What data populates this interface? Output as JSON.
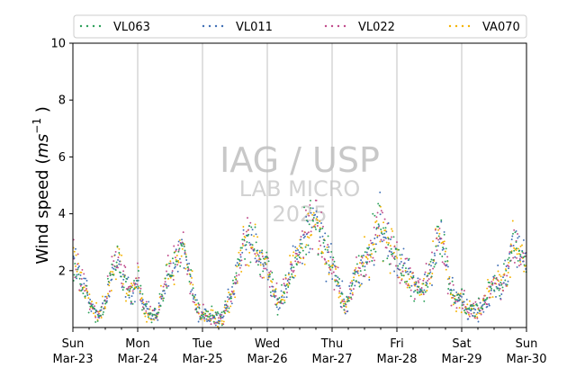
{
  "chart_data": {
    "type": "scatter",
    "title": "",
    "xlabel": "",
    "ylabel": "Wind speed",
    "ylabel_unit_base": "ms",
    "ylabel_unit_exp": "−1",
    "ylim": [
      0,
      10
    ],
    "xlim": [
      0,
      7
    ],
    "yticks": [
      2,
      4,
      6,
      8,
      10
    ],
    "grid": "vertical",
    "legend_position": "top",
    "x_ticks": [
      {
        "x": 0,
        "day": "Sun",
        "date": "Mar-23"
      },
      {
        "x": 1,
        "day": "Mon",
        "date": "Mar-24"
      },
      {
        "x": 2,
        "day": "Tue",
        "date": "Mar-25"
      },
      {
        "x": 3,
        "day": "Wed",
        "date": "Mar-26"
      },
      {
        "x": 4,
        "day": "Thu",
        "date": "Mar-27"
      },
      {
        "x": 5,
        "day": "Fri",
        "date": "Mar-28"
      },
      {
        "x": 6,
        "day": "Sat",
        "date": "Mar-29"
      },
      {
        "x": 7,
        "day": "Sun",
        "date": "Mar-30"
      }
    ],
    "watermark": [
      "IAG / USP",
      "LAB MICRO",
      "2025"
    ],
    "series": [
      {
        "name": "VL063",
        "color": "#2ca05a"
      },
      {
        "name": "VL011",
        "color": "#3f6fb5"
      },
      {
        "name": "VL022",
        "color": "#c04a8a"
      },
      {
        "name": "VA070",
        "color": "#f5b300"
      }
    ],
    "profile": {
      "x": [
        0.0,
        0.1,
        0.2,
        0.3,
        0.4,
        0.5,
        0.6,
        0.7,
        0.8,
        0.9,
        1.0,
        1.1,
        1.2,
        1.3,
        1.4,
        1.5,
        1.6,
        1.7,
        1.8,
        1.9,
        2.0,
        2.1,
        2.2,
        2.3,
        2.4,
        2.5,
        2.6,
        2.7,
        2.8,
        2.9,
        3.0,
        3.1,
        3.2,
        3.3,
        3.4,
        3.5,
        3.6,
        3.7,
        3.8,
        3.9,
        4.0,
        4.1,
        4.2,
        4.3,
        4.4,
        4.5,
        4.6,
        4.7,
        4.8,
        4.9,
        5.0,
        5.1,
        5.2,
        5.3,
        5.4,
        5.5,
        5.6,
        5.7,
        5.8,
        5.9,
        6.0,
        6.1,
        6.2,
        6.3,
        6.4,
        6.5,
        6.6,
        6.7,
        6.8,
        6.9,
        7.0
      ],
      "y": [
        2.5,
        1.8,
        1.4,
        0.6,
        0.4,
        1.0,
        1.8,
        2.4,
        1.6,
        1.2,
        1.6,
        0.7,
        0.5,
        0.4,
        1.4,
        2.0,
        2.3,
        2.8,
        1.9,
        0.7,
        0.4,
        0.4,
        0.3,
        0.3,
        0.9,
        1.7,
        2.6,
        3.1,
        2.9,
        2.4,
        2.1,
        1.2,
        0.9,
        1.6,
        2.2,
        2.6,
        3.3,
        3.9,
        3.3,
        2.6,
        2.2,
        1.4,
        0.7,
        1.3,
        2.0,
        2.3,
        2.6,
        3.6,
        3.4,
        2.9,
        2.4,
        2.0,
        1.8,
        1.4,
        1.3,
        2.0,
        2.8,
        3.2,
        1.6,
        1.0,
        1.0,
        0.6,
        0.6,
        0.7,
        1.2,
        1.6,
        1.5,
        2.0,
        3.0,
        2.6,
        2.4
      ]
    },
    "points_per_series": 450
  }
}
